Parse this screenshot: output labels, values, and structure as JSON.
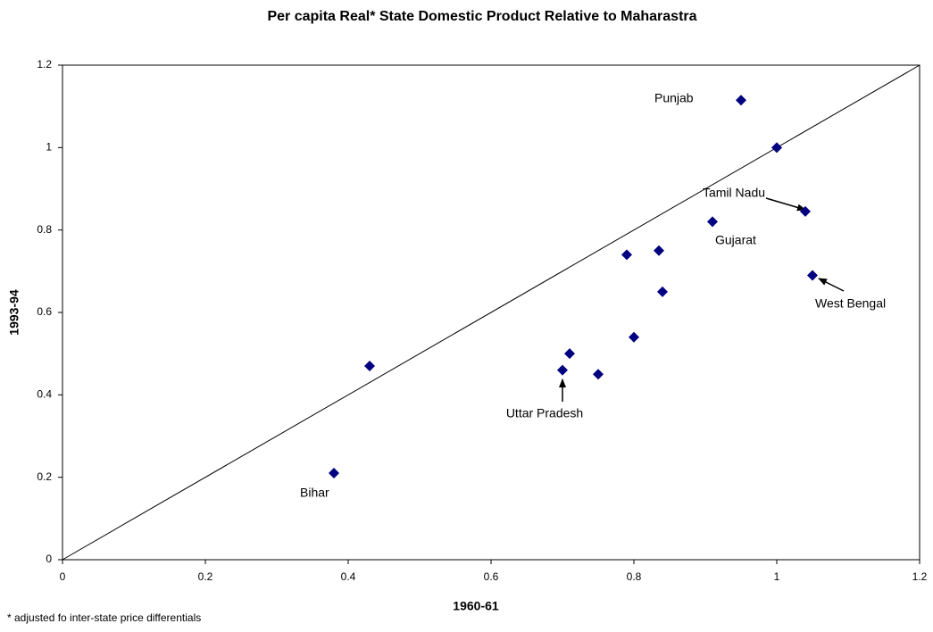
{
  "chart_data": {
    "type": "scatter",
    "title": "Per capita Real* State Domestic Product Relative to Maharastra",
    "x_label": "1960-61",
    "y_label": "1993-94",
    "footnote": "* adjusted fo inter-state price differentials",
    "x": [
      0.38,
      0.43,
      0.7,
      0.71,
      0.75,
      0.8,
      0.79,
      0.835,
      0.84,
      0.91,
      0.95,
      1.0,
      1.04,
      1.05
    ],
    "values": [
      0.21,
      0.47,
      0.46,
      0.5,
      0.45,
      0.54,
      0.74,
      0.75,
      0.65,
      0.82,
      1.115,
      1.0,
      0.845,
      0.69
    ],
    "color": "#000080",
    "xlim": [
      0,
      1.2
    ],
    "ylim": [
      0,
      1.2
    ],
    "xticks": [
      0,
      0.2,
      0.4,
      0.6,
      0.8,
      1,
      1.2
    ],
    "yticks": [
      0,
      0.2,
      0.4,
      0.6,
      0.8,
      1,
      1.2
    ],
    "grid": false,
    "diagonal": true,
    "annotations": [
      "Punjab",
      "Tamil Nadu",
      "Gujarat",
      "West Bengal",
      "Uttar Pradesh",
      "Bihar"
    ]
  }
}
